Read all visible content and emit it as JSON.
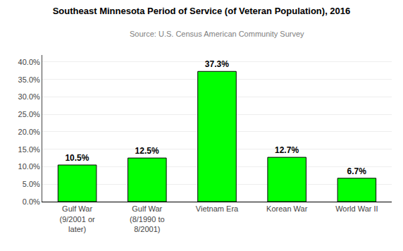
{
  "chart_data": {
    "type": "bar",
    "title": "Southeast Minnesota Period of Service (of Veteran Population), 2016",
    "subtitle": "Source: U.S. Census American Community Survey",
    "categories": [
      "Gulf War\n(9/2001 or\nlater)",
      "Gulf War\n(8/1990 to\n8/2001)",
      "Vietnam Era",
      "Korean War",
      "World War II"
    ],
    "values": [
      10.5,
      12.5,
      37.3,
      12.7,
      6.7
    ],
    "value_labels": [
      "10.5%",
      "12.5%",
      "37.3%",
      "12.7%",
      "6.7%"
    ],
    "data_labels": true,
    "color": "#00FF00",
    "ylim": [
      0,
      42
    ],
    "yticks": [
      {
        "value": 0,
        "label": "0.0%"
      },
      {
        "value": 5,
        "label": "5.0%"
      },
      {
        "value": 10,
        "label": "10.0%"
      },
      {
        "value": 15,
        "label": "15.0%"
      },
      {
        "value": 20,
        "label": "20.0%"
      },
      {
        "value": 25,
        "label": "25.0%"
      },
      {
        "value": 30,
        "label": "30.0%"
      },
      {
        "value": 35,
        "label": "35.0%"
      },
      {
        "value": 40,
        "label": "40.0%"
      }
    ],
    "grid": true
  }
}
